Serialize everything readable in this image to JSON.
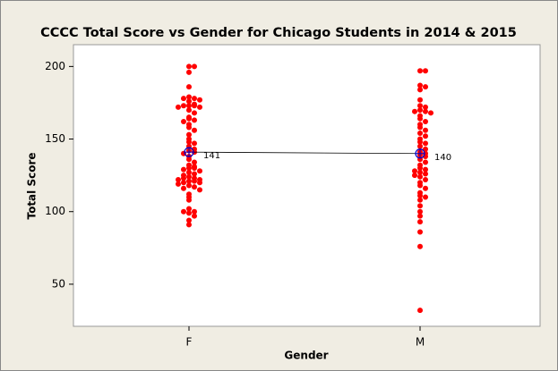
{
  "chart_data": {
    "type": "individual_value",
    "title": "CCCC Total Score vs Gender for Chicago Students in 2014 & 2015",
    "xlabel": "Gender",
    "ylabel": "Total Score",
    "categories": [
      "F",
      "M"
    ],
    "points": [
      [
        200,
        200,
        196,
        186,
        179,
        178,
        178,
        177,
        176,
        174,
        173,
        173,
        173,
        172,
        172,
        170,
        168,
        165,
        164,
        163,
        162,
        160,
        158,
        156,
        153,
        150,
        148,
        147,
        145,
        143,
        142,
        141,
        140,
        138,
        136,
        134,
        132,
        131,
        130,
        130,
        129,
        128,
        127,
        126,
        125,
        124,
        123,
        123,
        122,
        122,
        121,
        121,
        120,
        120,
        119,
        118,
        117,
        116,
        115,
        112,
        110,
        108,
        102,
        100,
        100,
        99,
        97,
        94,
        91
      ],
      [
        197,
        197,
        187,
        186,
        184,
        177,
        173,
        172,
        170,
        169,
        169,
        168,
        166,
        164,
        162,
        160,
        158,
        156,
        154,
        152,
        150,
        148,
        147,
        145,
        143,
        141,
        140,
        139,
        138,
        136,
        134,
        132,
        130,
        129,
        128,
        127,
        126,
        125,
        124,
        122,
        120,
        118,
        116,
        113,
        111,
        110,
        108,
        104,
        100,
        97,
        93,
        86,
        76,
        32
      ]
    ],
    "means": [
      141,
      140
    ],
    "point_color": "#ff0000",
    "mean_color": "#0000cc",
    "ylim": [
      21,
      215
    ],
    "yticks": [
      50,
      100,
      150,
      200
    ]
  }
}
